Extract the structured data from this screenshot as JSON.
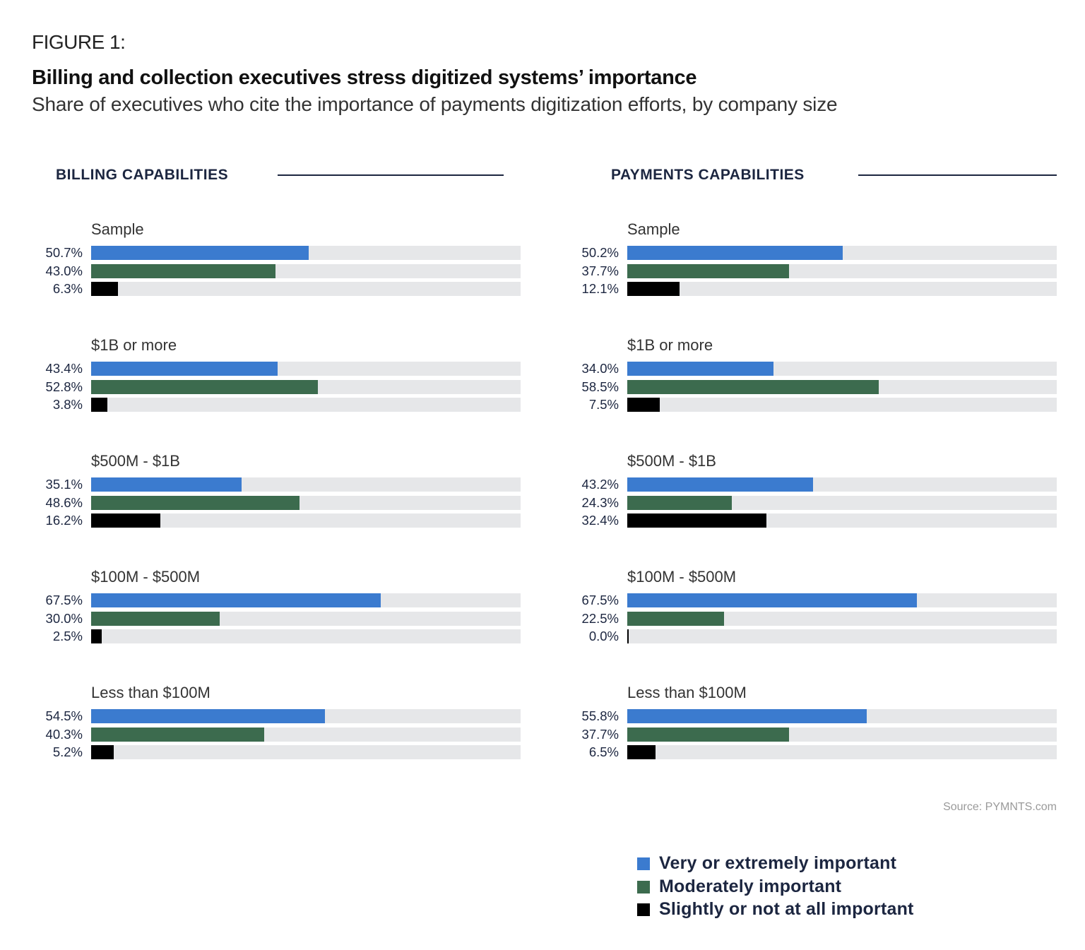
{
  "figure_label": "FIGURE 1:",
  "title": "Billing and collection executives stress digitized systems’ importance",
  "subtitle": "Share of executives who cite the importance of payments digitization efforts, by company size",
  "source": "Source: PYMNTS.com",
  "colors": {
    "very_important": "#3b7bcf",
    "moderately_important": "#3c6b4e",
    "slightly_important": "#000000",
    "track": "#e6e7e9"
  },
  "chart_data": [
    {
      "type": "bar",
      "orientation": "horizontal",
      "title": "BILLING CAPABILITIES",
      "xlim": [
        0,
        100
      ],
      "categories": [
        "Sample",
        "$1B or more",
        "$500M - $1B",
        "$100M - $500M",
        "Less than $100M"
      ],
      "series": [
        {
          "name": "Very or extremely important",
          "values": [
            50.7,
            43.4,
            35.1,
            67.5,
            54.5
          ],
          "labels": [
            "50.7%",
            "43.4%",
            "35.1%",
            "67.5%",
            "54.5%"
          ]
        },
        {
          "name": "Moderately important",
          "values": [
            43.0,
            52.8,
            48.6,
            30.0,
            40.3
          ],
          "labels": [
            "43.0%",
            "52.8%",
            "48.6%",
            "30.0%",
            "40.3%"
          ]
        },
        {
          "name": "Slightly or not at all important",
          "values": [
            6.3,
            3.8,
            16.2,
            2.5,
            5.2
          ],
          "labels": [
            "6.3%",
            "3.8%",
            "16.2%",
            "2.5%",
            "5.2%"
          ]
        }
      ]
    },
    {
      "type": "bar",
      "orientation": "horizontal",
      "title": "PAYMENTS CAPABILITIES",
      "xlim": [
        0,
        100
      ],
      "categories": [
        "Sample",
        "$1B or more",
        "$500M - $1B",
        "$100M - $500M",
        "Less than $100M"
      ],
      "series": [
        {
          "name": "Very or extremely important",
          "values": [
            50.2,
            34.0,
            43.2,
            67.5,
            55.8
          ],
          "labels": [
            "50.2%",
            "34.0%",
            "43.2%",
            "67.5%",
            "55.8%"
          ]
        },
        {
          "name": "Moderately important",
          "values": [
            37.7,
            58.5,
            24.3,
            22.5,
            37.7
          ],
          "labels": [
            "37.7%",
            "58.5%",
            "24.3%",
            "22.5%",
            "37.7%"
          ]
        },
        {
          "name": "Slightly or not at all important",
          "values": [
            12.1,
            7.5,
            32.4,
            0.0,
            6.5
          ],
          "labels": [
            "12.1%",
            "7.5%",
            "32.4%",
            "0.0%",
            "6.5%"
          ]
        }
      ]
    }
  ],
  "legend": [
    {
      "label": "Very or extremely important",
      "color": "#3b7bcf"
    },
    {
      "label": "Moderately important",
      "color": "#3c6b4e"
    },
    {
      "label": "Slightly or not at all important",
      "color": "#000000"
    }
  ]
}
